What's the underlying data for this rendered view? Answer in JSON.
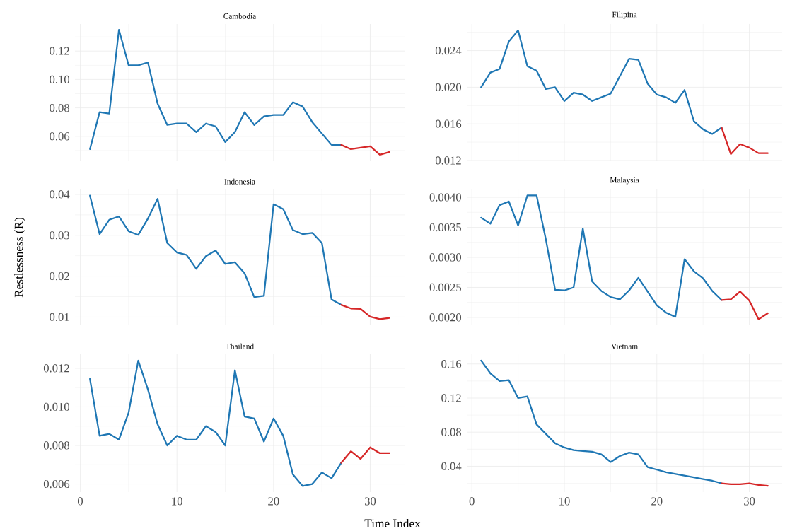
{
  "chart_data": [
    {
      "type": "line",
      "title": "Cambodia",
      "xlim": [
        -0.55,
        33.55
      ],
      "xticks": [
        0,
        10,
        20,
        30
      ],
      "ylim": [
        0.043,
        0.139
      ],
      "yticks": [
        0.06,
        0.08,
        {
          "value": 0.1,
          "label": "0.10"
        },
        0.12
      ],
      "grid": true,
      "tick_labels": "y",
      "series": [
        {
          "color": "#1f77b4",
          "x": [
            1,
            2,
            3,
            4,
            5,
            6,
            7,
            8,
            9,
            10,
            11,
            12,
            13,
            14,
            15,
            16,
            17,
            18,
            19,
            20,
            21,
            22,
            23,
            24,
            25,
            26,
            27
          ],
          "values": [
            0.051,
            0.077,
            0.076,
            0.135,
            0.11,
            0.11,
            0.112,
            0.083,
            0.068,
            0.069,
            0.069,
            0.063,
            0.069,
            0.067,
            0.056,
            0.063,
            0.077,
            0.068,
            0.074,
            0.075,
            0.075,
            0.084,
            0.081,
            0.07,
            0.062,
            0.054,
            0.054
          ]
        },
        {
          "color": "#d62728",
          "x": [
            27,
            28,
            29,
            30,
            31,
            32
          ],
          "values": [
            0.054,
            0.051,
            0.052,
            0.053,
            0.047,
            0.049
          ]
        }
      ]
    },
    {
      "type": "line",
      "title": "Filipina",
      "xlim": [
        -0.55,
        33.55
      ],
      "xticks": [
        0,
        10,
        20,
        30
      ],
      "ylim": [
        0.012,
        0.0269
      ],
      "yticks": [
        0.012,
        0.016,
        {
          "value": 0.02,
          "label": "0.020"
        },
        0.024
      ],
      "grid": true,
      "tick_labels": "y",
      "series": [
        {
          "color": "#1f77b4",
          "x": [
            1,
            2,
            3,
            4,
            5,
            6,
            7,
            8,
            9,
            10,
            11,
            12,
            13,
            14,
            15,
            16,
            17,
            18,
            19,
            20,
            21,
            22,
            23,
            24,
            25,
            26,
            27
          ],
          "values": [
            0.02,
            0.0216,
            0.022,
            0.025,
            0.0262,
            0.0223,
            0.0218,
            0.0198,
            0.02,
            0.0185,
            0.0194,
            0.0192,
            0.0185,
            0.0189,
            0.0193,
            0.0212,
            0.0231,
            0.023,
            0.0204,
            0.0192,
            0.0189,
            0.0183,
            0.0197,
            0.0163,
            0.0154,
            0.0149,
            0.0156
          ]
        },
        {
          "color": "#d62728",
          "x": [
            27,
            28,
            29,
            30,
            31,
            32
          ],
          "values": [
            0.0156,
            0.0127,
            0.0138,
            0.0134,
            0.0128,
            0.0128
          ]
        }
      ]
    },
    {
      "type": "line",
      "title": "Indonesia",
      "ylabel": "Restlessness (R)",
      "xlim": [
        -0.55,
        33.55
      ],
      "xticks": [
        0,
        10,
        20,
        30
      ],
      "ylim": [
        0.008,
        0.0412
      ],
      "yticks": [
        0.01,
        0.02,
        0.03,
        0.04
      ],
      "grid": true,
      "tick_labels": "y",
      "series": [
        {
          "color": "#1f77b4",
          "x": [
            1,
            2,
            3,
            4,
            5,
            6,
            7,
            8,
            9,
            10,
            11,
            12,
            13,
            14,
            15,
            16,
            17,
            18,
            19,
            20,
            21,
            22,
            23,
            24,
            25,
            26,
            27
          ],
          "values": [
            0.0397,
            0.0303,
            0.0338,
            0.0346,
            0.031,
            0.0301,
            0.0341,
            0.0389,
            0.0281,
            0.0258,
            0.0252,
            0.0218,
            0.0249,
            0.0263,
            0.023,
            0.0234,
            0.0207,
            0.0149,
            0.0152,
            0.0376,
            0.0364,
            0.0313,
            0.0303,
            0.0306,
            0.0281,
            0.0143,
            0.013
          ]
        },
        {
          "color": "#d62728",
          "x": [
            27,
            28,
            29,
            30,
            31,
            32
          ],
          "values": [
            0.013,
            0.0121,
            0.012,
            0.0101,
            0.0095,
            0.0098
          ]
        }
      ]
    },
    {
      "type": "line",
      "title": "Malaysia",
      "xlim": [
        -0.55,
        33.55
      ],
      "xticks": [
        0,
        10,
        20,
        30
      ],
      "ylim": [
        0.00187,
        0.00413
      ],
      "yticks": [
        {
          "value": 0.002,
          "label": "0.0020"
        },
        0.0025,
        {
          "value": 0.003,
          "label": "0.0030"
        },
        0.0035,
        {
          "value": 0.004,
          "label": "0.0040"
        }
      ],
      "grid": true,
      "tick_labels": "y",
      "series": [
        {
          "color": "#1f77b4",
          "x": [
            1,
            2,
            3,
            4,
            5,
            6,
            7,
            8,
            9,
            10,
            11,
            12,
            13,
            14,
            15,
            16,
            17,
            18,
            19,
            20,
            21,
            22,
            23,
            24,
            25,
            26,
            27
          ],
          "values": [
            0.00366,
            0.00356,
            0.00387,
            0.00393,
            0.00353,
            0.00403,
            0.00403,
            0.0033,
            0.00246,
            0.00245,
            0.0025,
            0.00348,
            0.0026,
            0.00244,
            0.00234,
            0.0023,
            0.00245,
            0.00266,
            0.00243,
            0.0022,
            0.00208,
            0.00201,
            0.00297,
            0.00277,
            0.00265,
            0.00244,
            0.00229
          ]
        },
        {
          "color": "#d62728",
          "x": [
            27,
            28,
            29,
            30,
            31,
            32
          ],
          "values": [
            0.00229,
            0.0023,
            0.00243,
            0.00228,
            0.00197,
            0.00207
          ]
        }
      ]
    },
    {
      "type": "line",
      "title": "Thailand",
      "xlabel": "Time Index",
      "xlim": [
        -0.55,
        33.55
      ],
      "xticks": [
        0,
        10,
        20,
        30
      ],
      "ylim": [
        0.00558,
        0.01273
      ],
      "yticks": [
        0.006,
        0.008,
        {
          "value": 0.01,
          "label": "0.010"
        },
        0.012
      ],
      "grid": true,
      "series": [
        {
          "color": "#1f77b4",
          "x": [
            1,
            2,
            3,
            4,
            5,
            6,
            7,
            8,
            9,
            10,
            11,
            12,
            13,
            14,
            15,
            16,
            17,
            18,
            19,
            20,
            21,
            22,
            23,
            24,
            25,
            26,
            27
          ],
          "values": [
            0.01145,
            0.0085,
            0.0086,
            0.0083,
            0.0097,
            0.0124,
            0.0109,
            0.0091,
            0.008,
            0.0085,
            0.0083,
            0.0083,
            0.009,
            0.0087,
            0.008,
            0.0119,
            0.0095,
            0.0094,
            0.0082,
            0.0094,
            0.0085,
            0.0065,
            0.0059,
            0.006,
            0.0066,
            0.0063,
            0.0071
          ]
        },
        {
          "color": "#d62728",
          "x": [
            27,
            28,
            29,
            30,
            31,
            32
          ],
          "values": [
            0.0071,
            0.0077,
            0.0073,
            0.0079,
            0.0076,
            0.0076
          ]
        }
      ]
    },
    {
      "type": "line",
      "title": "Vietnam",
      "xlim": [
        -0.55,
        33.55
      ],
      "xticks": [
        0,
        10,
        20,
        30
      ],
      "ylim": [
        0.0097,
        0.1714
      ],
      "yticks": [
        0.04,
        0.08,
        0.12,
        0.16
      ],
      "grid": true,
      "series": [
        {
          "color": "#1f77b4",
          "x": [
            1,
            2,
            3,
            4,
            5,
            6,
            7,
            8,
            9,
            10,
            11,
            12,
            13,
            14,
            15,
            16,
            17,
            18,
            19,
            20,
            21,
            22,
            23,
            24,
            25,
            26,
            27
          ],
          "values": [
            0.164,
            0.149,
            0.14,
            0.141,
            0.12,
            0.122,
            0.089,
            0.078,
            0.067,
            0.062,
            0.059,
            0.058,
            0.057,
            0.054,
            0.045,
            0.052,
            0.056,
            0.054,
            0.039,
            0.036,
            0.033,
            0.031,
            0.029,
            0.027,
            0.025,
            0.023,
            0.02
          ]
        },
        {
          "color": "#d62728",
          "x": [
            27,
            28,
            29,
            30,
            31,
            32
          ],
          "values": [
            0.02,
            0.019,
            0.019,
            0.02,
            0.018,
            0.017
          ]
        }
      ]
    }
  ]
}
